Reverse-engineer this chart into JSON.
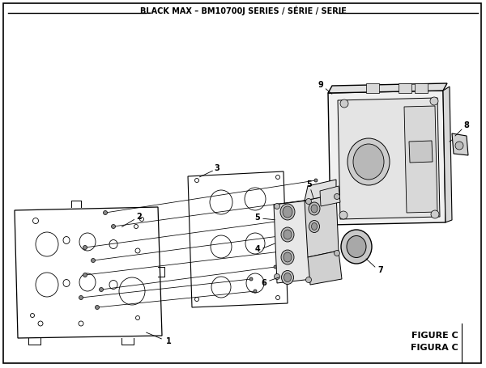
{
  "title": "BLACK MAX – BM10700J SERIES / SÉRIE / SERIE",
  "figure_label": "FIGURE C",
  "figura_label": "FIGURA C",
  "bg_color": "#ffffff",
  "border_color": "#000000"
}
